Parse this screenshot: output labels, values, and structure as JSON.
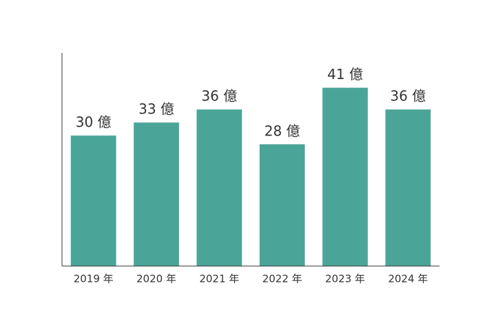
{
  "chart_data": {
    "type": "bar",
    "categories": [
      "2019 年",
      "2020 年",
      "2021 年",
      "2022 年",
      "2023 年",
      "2024 年"
    ],
    "values": [
      30,
      33,
      36,
      28,
      41,
      36
    ],
    "value_labels": [
      "30 億",
      "33 億",
      "36 億",
      "28 億",
      "41 億",
      "36 億"
    ],
    "color": "#4aa598",
    "ylim": [
      0,
      49
    ]
  }
}
